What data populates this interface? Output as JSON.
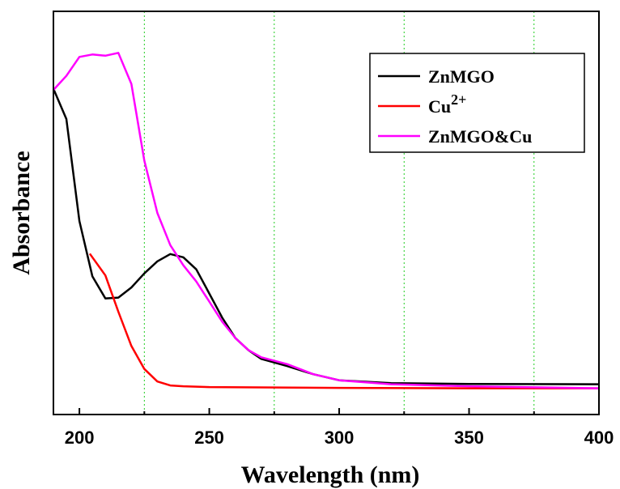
{
  "chart_data": {
    "type": "line",
    "xlabel": "Wavelength (nm)",
    "ylabel": "Absorbance",
    "xlim": [
      190,
      400
    ],
    "ylim": [
      0,
      1
    ],
    "xticks": [
      200,
      250,
      300,
      350,
      400
    ],
    "vertical_gridlines": [
      225,
      275,
      325,
      375
    ],
    "grid": "vertical dotted green lines",
    "legend_position": "top-right",
    "series": [
      {
        "name": "ZnMGO",
        "color": "#000000",
        "x": [
          190,
          195,
          200,
          205,
          210,
          215,
          220,
          225,
          230,
          235,
          240,
          245,
          250,
          255,
          260,
          265,
          270,
          280,
          290,
          300,
          320,
          350,
          400
        ],
        "y": [
          0.808,
          0.733,
          0.48,
          0.343,
          0.288,
          0.29,
          0.315,
          0.35,
          0.38,
          0.398,
          0.39,
          0.36,
          0.3,
          0.24,
          0.19,
          0.16,
          0.138,
          0.12,
          0.1,
          0.085,
          0.078,
          0.076,
          0.075
        ]
      },
      {
        "name": "Cu",
        "name_superscript": "2+",
        "color": "#ff0000",
        "x": [
          204,
          210,
          215,
          220,
          225,
          230,
          235,
          240,
          250,
          300,
          350,
          400
        ],
        "y": [
          0.399,
          0.345,
          0.255,
          0.17,
          0.113,
          0.082,
          0.072,
          0.07,
          0.068,
          0.066,
          0.065,
          0.065
        ]
      },
      {
        "name": "ZnMGO&Cu",
        "color": "#ff00ff",
        "x": [
          190,
          195,
          200,
          205,
          210,
          215,
          220,
          225,
          230,
          235,
          240,
          245,
          250,
          255,
          260,
          265,
          270,
          280,
          290,
          300,
          320,
          350,
          400
        ],
        "y": [
          0.805,
          0.84,
          0.887,
          0.893,
          0.89,
          0.897,
          0.82,
          0.63,
          0.5,
          0.42,
          0.37,
          0.33,
          0.28,
          0.23,
          0.19,
          0.16,
          0.142,
          0.125,
          0.1,
          0.085,
          0.075,
          0.07,
          0.065
        ]
      }
    ]
  }
}
